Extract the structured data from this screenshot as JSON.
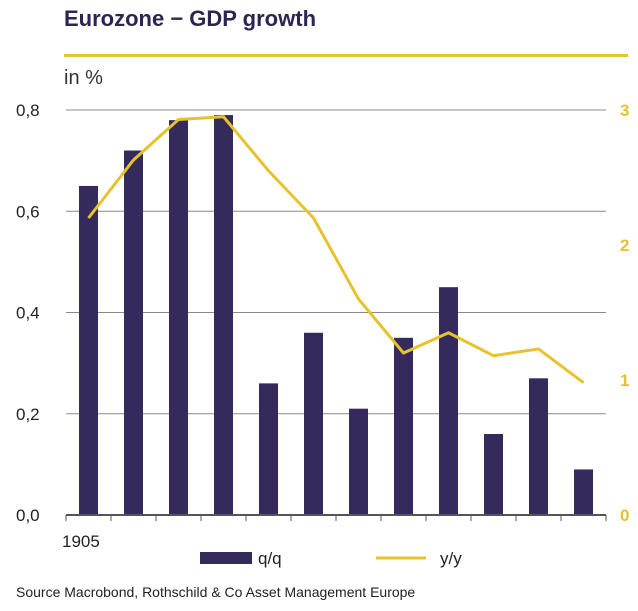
{
  "header": {
    "title": "Eurozone − GDP growth",
    "unit": "in %"
  },
  "footer": {
    "source": "Source Macrobond, Rothschild & Co Asset Management Europe"
  },
  "colors": {
    "bar": "#342b5c",
    "line": "#e6c22e",
    "grid": "#8a8a8a",
    "axis": "#555555"
  },
  "chart_data": {
    "type": "bar",
    "categories": [
      "1905",
      "",
      "",
      "",
      "",
      "",
      "",
      "",
      "",
      "",
      "",
      ""
    ],
    "series": [
      {
        "name": "q/q",
        "type": "bar",
        "axis": "left",
        "values": [
          0.65,
          0.72,
          0.78,
          0.79,
          0.26,
          0.36,
          0.21,
          0.35,
          0.45,
          0.16,
          0.27,
          0.09
        ]
      },
      {
        "name": "y/y",
        "type": "line",
        "axis": "right",
        "values": [
          2.2,
          2.63,
          2.93,
          2.95,
          2.55,
          2.2,
          1.6,
          1.2,
          1.35,
          1.18,
          1.23,
          0.98
        ]
      }
    ],
    "left_axis": {
      "ylim": [
        0,
        0.8
      ],
      "ticks": [
        "0,0",
        "0,2",
        "0,4",
        "0,6",
        "0,8"
      ]
    },
    "right_axis": {
      "ylim": [
        0,
        3
      ],
      "ticks": [
        "0",
        "1",
        "2",
        "3"
      ]
    },
    "grid": true,
    "legend": {
      "position": "bottom",
      "entries": [
        "q/q",
        "y/y"
      ]
    }
  }
}
